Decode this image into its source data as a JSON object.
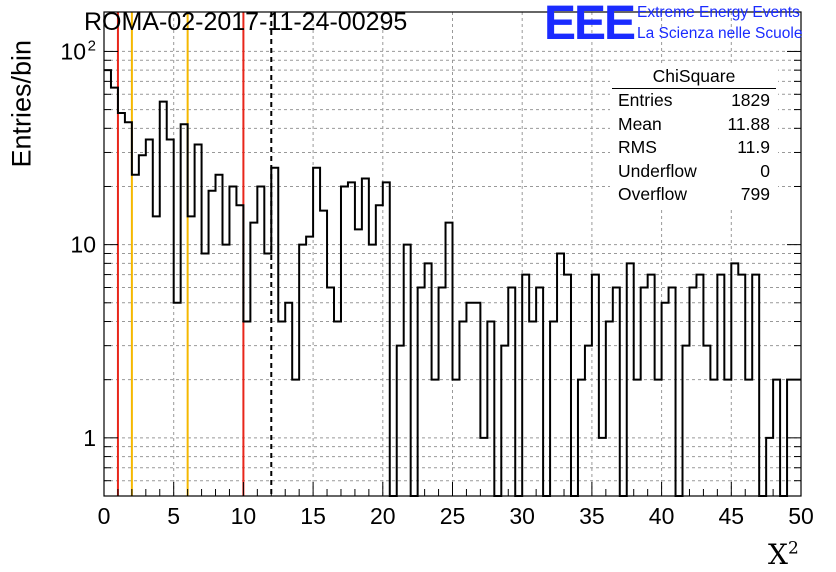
{
  "page": {
    "title": "ROMA-02-2017-11-24-00295",
    "logo_mark": "EEE",
    "logo_line1": "Extreme Energy Events",
    "logo_line2": "La Scienza nelle Scuole",
    "brand_color": "#1a2bff"
  },
  "stats": {
    "title": "ChiSquare",
    "rows": [
      {
        "label": "Entries",
        "value": "1829"
      },
      {
        "label": "Mean",
        "value": "11.88"
      },
      {
        "label": "RMS",
        "value": "11.9"
      },
      {
        "label": "Underflow",
        "value": "0"
      },
      {
        "label": "Overflow",
        "value": "799"
      }
    ]
  },
  "chart_data": {
    "type": "histogram",
    "ylabel": "Entries/bin",
    "xlabel": "X",
    "xlabel_sup": "2",
    "xlim": [
      0,
      50
    ],
    "ylim": [
      0.5,
      160
    ],
    "yscale": "log",
    "grid": true,
    "bin_width": 0.5,
    "x_ticks": [
      0,
      5,
      10,
      15,
      20,
      25,
      30,
      35,
      40,
      45,
      50
    ],
    "y_ticks": [
      {
        "value": 1,
        "label": "1"
      },
      {
        "value": 10,
        "label": "10"
      },
      {
        "value": 100,
        "label": "10",
        "sup": "2"
      }
    ],
    "values": [
      80,
      65,
      48,
      43,
      23,
      29,
      35,
      14,
      55,
      35,
      5,
      42,
      14,
      33,
      9,
      19,
      23,
      10,
      20,
      16,
      4,
      13,
      20,
      9,
      25,
      4,
      5,
      2,
      10,
      11,
      25,
      15,
      6,
      4,
      20,
      21,
      12,
      22,
      10,
      16,
      21,
      0.5,
      3,
      10,
      0.5,
      6,
      8,
      2,
      6,
      13,
      2,
      4,
      5,
      5,
      1,
      4,
      0.5,
      3,
      6,
      0.5,
      7,
      4,
      6,
      0.5,
      4,
      9,
      7,
      0.5,
      2,
      3,
      7,
      1,
      4,
      6,
      0.5,
      8,
      2,
      6,
      7,
      2,
      5,
      6,
      0.5,
      3,
      6,
      7,
      3,
      2,
      7,
      2,
      8,
      7,
      2,
      7,
      0.5,
      1,
      2,
      0.5,
      2,
      2
    ],
    "vertical_lines": [
      {
        "x": 1,
        "color": "#e8261a",
        "style": "solid"
      },
      {
        "x": 2,
        "color": "#f5b800",
        "style": "solid"
      },
      {
        "x": 6,
        "color": "#f5b800",
        "style": "solid"
      },
      {
        "x": 10,
        "color": "#e8261a",
        "style": "solid"
      },
      {
        "x": 12,
        "color": "#000000",
        "style": "dashed"
      }
    ]
  }
}
